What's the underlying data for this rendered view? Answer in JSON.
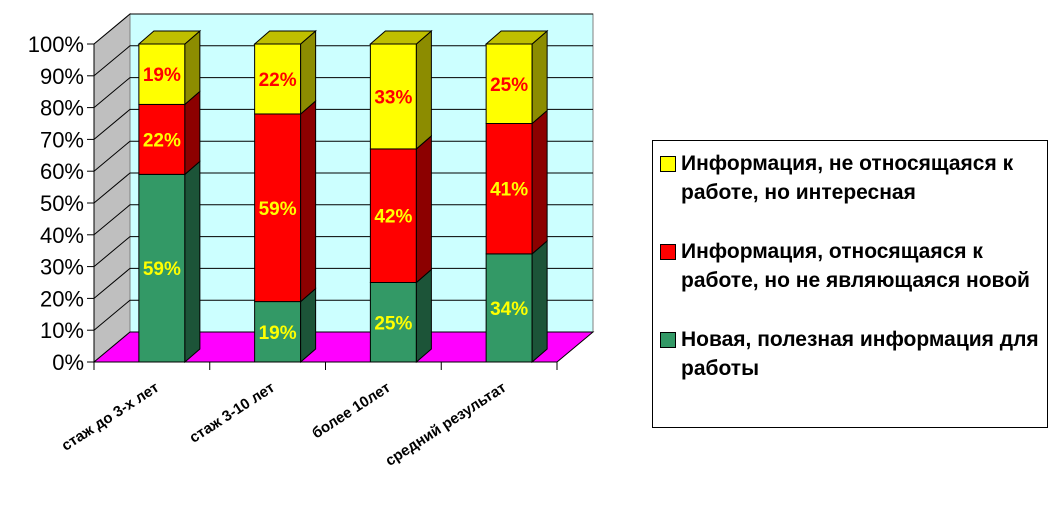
{
  "chart_data": {
    "type": "bar",
    "stacked": true,
    "percent_stacked": true,
    "three_d": true,
    "categories": [
      "стаж до 3-х лет",
      "стаж 3-10 лет",
      "более 10лет",
      "средний результат"
    ],
    "series": [
      {
        "name": "Новая, полезная информация для работы",
        "values": [
          59,
          19,
          25,
          34
        ],
        "labels": [
          "59%",
          "19%",
          "25%",
          "34%"
        ],
        "color": "#339966",
        "label_color": "#ffff00"
      },
      {
        "name": "Информация, относящаяся к работе, но не являющаяся новой",
        "values": [
          22,
          59,
          42,
          41
        ],
        "labels": [
          "22%",
          "59%",
          "42%",
          "41%"
        ],
        "color": "#ff0000",
        "label_color": "#ffff00"
      },
      {
        "name": "Информация, не относящаяся к работе, но интересная",
        "values": [
          19,
          22,
          33,
          25
        ],
        "labels": [
          "19%",
          "22%",
          "33%",
          "25%"
        ],
        "color": "#ffff00",
        "label_color": "#ff0000"
      }
    ],
    "y_ticks": [
      "0%",
      "10%",
      "20%",
      "30%",
      "40%",
      "50%",
      "60%",
      "70%",
      "80%",
      "90%",
      "100%"
    ],
    "ylim": [
      0,
      100
    ],
    "grid": true,
    "legend_position": "right",
    "wall_color": "#ccffff",
    "floor_color": "#ff00ff"
  },
  "legend": {
    "items": [
      {
        "label": "Информация, не относящаяся к работе, но интересная",
        "color": "#ffff00"
      },
      {
        "label": "Информация, относящаяся к работе, но не являющаяся новой",
        "color": "#ff0000"
      },
      {
        "label": "Новая, полезная информация для работы",
        "color": "#339966"
      }
    ]
  }
}
